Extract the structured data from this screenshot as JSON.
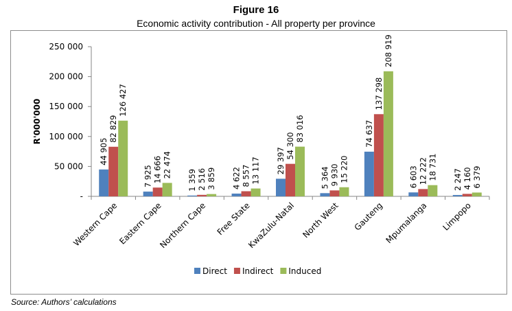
{
  "figure": {
    "number": "Figure 16",
    "subtitle": "Economic activity contribution - All property per province",
    "source": "Source: Authors’ calculations"
  },
  "chart_data": {
    "type": "bar",
    "title": "Figure 16",
    "subtitle": "Economic activity contribution - All property per province",
    "xlabel": "",
    "ylabel": "R'000'000",
    "ylim": [
      0,
      250000
    ],
    "yticks": [
      0,
      50000,
      100000,
      150000,
      200000,
      250000
    ],
    "ytick_labels": [
      "-",
      "50 000",
      "100 000",
      "150 000",
      "200 000",
      "250 000"
    ],
    "grid": false,
    "legend_position": "bottom",
    "categories": [
      "Western Cape",
      "Eastern Cape",
      "Northern Cape",
      "Free State",
      "KwaZulu-Natal",
      "North West",
      "Gauteng",
      "Mpumalanga",
      "Limpopo"
    ],
    "series": [
      {
        "name": "Direct",
        "color": "#4f81bd",
        "values": [
          44905,
          7925,
          1359,
          4622,
          29397,
          5364,
          74637,
          6603,
          2247
        ],
        "labels": [
          "44 905",
          "7 925",
          "1 359",
          "4 622",
          "29 397",
          "5 364",
          "74 637",
          "6 603",
          "2 247"
        ]
      },
      {
        "name": "Indirect",
        "color": "#c0504d",
        "values": [
          82829,
          14666,
          2516,
          8557,
          54300,
          9930,
          137298,
          12222,
          4160
        ],
        "labels": [
          "82 829",
          "14 666",
          "2 516",
          "8 557",
          "54 300",
          "9 930",
          "137 298",
          "12 222",
          "4 160"
        ]
      },
      {
        "name": "Induced",
        "color": "#9bbb59",
        "values": [
          126427,
          22474,
          3859,
          13117,
          83016,
          15220,
          208919,
          18731,
          6379
        ],
        "labels": [
          "126 427",
          "22 474",
          "3 859",
          "13 117",
          "83 016",
          "15 220",
          "208 919",
          "18 731",
          "6 379"
        ]
      }
    ]
  }
}
